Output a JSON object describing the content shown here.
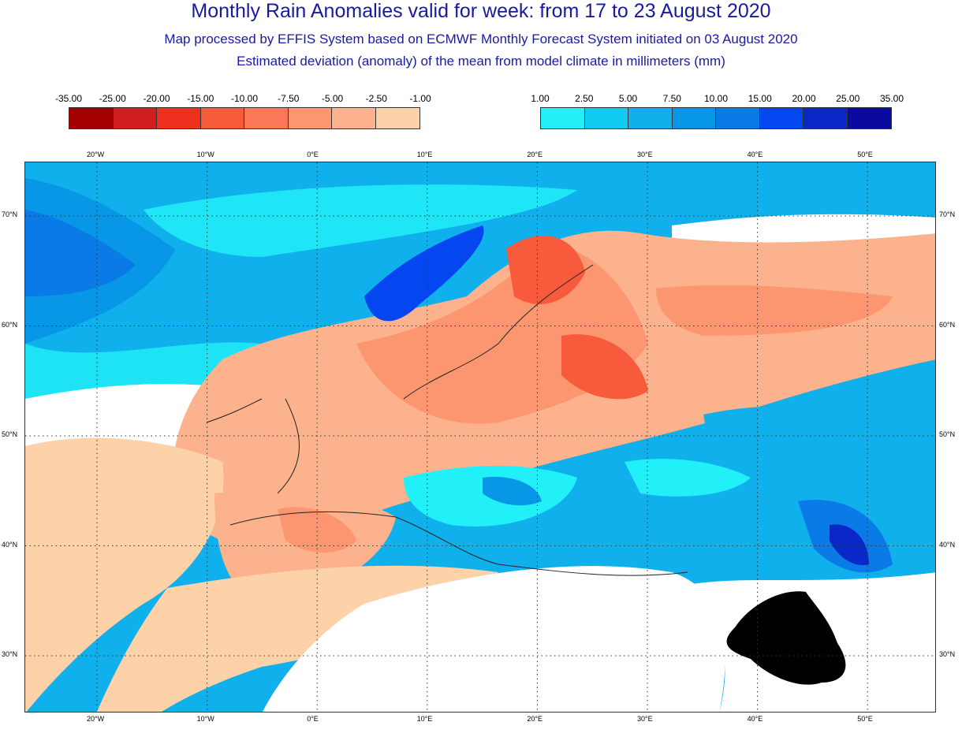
{
  "header": {
    "title": "Monthly Rain Anomalies valid for week: from 17 to 23 August 2020",
    "subtitle1": "Map processed by EFFIS System based on ECMWF Monthly Forecast System initiated on 03 August 2020",
    "subtitle2": "Estimated deviation (anomaly) of the mean from model climate in millimeters (mm)"
  },
  "legend_negative": {
    "labels": [
      "-35.00",
      "-25.00",
      "-20.00",
      "-15.00",
      "-10.00",
      "-7.50",
      "-5.00",
      "-2.50",
      "-1.00"
    ],
    "colors": [
      "#a50000",
      "#d21e1e",
      "#f0301e",
      "#f85a3c",
      "#fa7858",
      "#fb9670",
      "#fcb28c",
      "#fdd2a8"
    ]
  },
  "legend_positive": {
    "labels": [
      "1.00",
      "2.50",
      "5.00",
      "7.50",
      "10.00",
      "15.00",
      "20.00",
      "25.00",
      "35.00"
    ],
    "colors": [
      "#22f0f8",
      "#10ccf0",
      "#10b0ec",
      "#0896e6",
      "#0a7ae6",
      "#0446f0",
      "#0a28c8",
      "#0a0aa0"
    ]
  },
  "map": {
    "lon_labels": [
      "20°W",
      "10°W",
      "0°E",
      "10°E",
      "20°E",
      "30°E",
      "40°E",
      "50°E"
    ],
    "lat_labels": [
      "70°N",
      "60°N",
      "50°N",
      "40°N",
      "30°N"
    ],
    "lon_values": [
      -20,
      -10,
      0,
      10,
      20,
      30,
      40,
      50
    ],
    "lat_values": [
      70,
      60,
      50,
      40,
      30
    ]
  }
}
